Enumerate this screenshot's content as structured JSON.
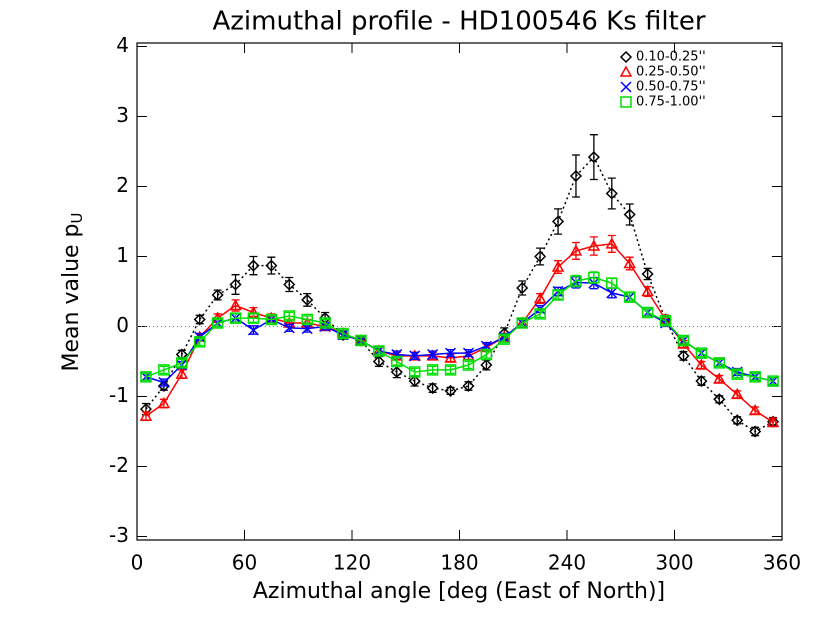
{
  "chart_data": {
    "type": "line",
    "title": "Azimuthal profile - HD100546 Ks filter",
    "xlabel": "Azimuthal angle [deg (East of North)]",
    "ylabel": {
      "text": "Mean value p",
      "subscript": "U"
    },
    "x": [
      5,
      15,
      25,
      35,
      45,
      55,
      65,
      75,
      85,
      95,
      105,
      115,
      125,
      135,
      145,
      155,
      165,
      175,
      185,
      195,
      205,
      215,
      225,
      235,
      245,
      255,
      265,
      275,
      285,
      295,
      305,
      315,
      325,
      335,
      345,
      355
    ],
    "xlim": [
      0,
      360
    ],
    "xticks": [
      0,
      60,
      120,
      180,
      240,
      300,
      360
    ],
    "ylim": [
      -3.05,
      4.05
    ],
    "yticks": [
      -3,
      -2,
      -1,
      0,
      1,
      2,
      3,
      4
    ],
    "reference_line": 0,
    "legend": "upper right",
    "series": [
      {
        "name": "0.10-0.25''",
        "color": "#000000",
        "marker": "diamond",
        "linestyle": "dotted",
        "values": [
          -1.18,
          -0.85,
          -0.4,
          0.1,
          0.45,
          0.6,
          0.87,
          0.87,
          0.6,
          0.38,
          0.12,
          -0.12,
          -0.2,
          -0.5,
          -0.65,
          -0.78,
          -0.88,
          -0.92,
          -0.85,
          -0.55,
          -0.1,
          0.55,
          1.0,
          1.5,
          2.15,
          2.42,
          1.9,
          1.6,
          0.75,
          0.1,
          -0.42,
          -0.78,
          -1.04,
          -1.34,
          -1.5,
          -1.36
        ],
        "errors": [
          0.08,
          0.06,
          0.06,
          0.06,
          0.07,
          0.14,
          0.13,
          0.12,
          0.1,
          0.09,
          0.08,
          0.06,
          0.06,
          0.07,
          0.08,
          0.07,
          0.06,
          0.05,
          0.06,
          0.07,
          0.08,
          0.1,
          0.12,
          0.18,
          0.3,
          0.32,
          0.22,
          0.15,
          0.08,
          0.06,
          0.06,
          0.06,
          0.05,
          0.05,
          0.06,
          0.06
        ]
      },
      {
        "name": "0.25-0.50''",
        "color": "#ff0000",
        "marker": "triangle",
        "linestyle": "solid",
        "values": [
          -1.28,
          -1.1,
          -0.68,
          -0.15,
          0.12,
          0.3,
          0.2,
          0.12,
          0.05,
          0.05,
          0.0,
          -0.1,
          -0.2,
          -0.35,
          -0.42,
          -0.42,
          -0.42,
          -0.45,
          -0.42,
          -0.3,
          -0.15,
          0.05,
          0.4,
          0.85,
          1.08,
          1.15,
          1.18,
          0.9,
          0.5,
          0.1,
          -0.25,
          -0.55,
          -0.75,
          -0.97,
          -1.2,
          -1.37
        ],
        "errors": [
          0.06,
          0.06,
          0.06,
          0.05,
          0.06,
          0.08,
          0.07,
          0.06,
          0.05,
          0.05,
          0.05,
          0.05,
          0.05,
          0.05,
          0.05,
          0.05,
          0.05,
          0.05,
          0.05,
          0.05,
          0.05,
          0.06,
          0.07,
          0.09,
          0.12,
          0.13,
          0.12,
          0.09,
          0.07,
          0.05,
          0.05,
          0.05,
          0.05,
          0.05,
          0.05,
          0.06
        ]
      },
      {
        "name": "0.50-0.75''",
        "color": "#0000ff",
        "marker": "x",
        "linestyle": "solid",
        "values": [
          -0.72,
          -0.8,
          -0.55,
          -0.15,
          0.05,
          0.12,
          -0.05,
          0.1,
          -0.02,
          -0.03,
          0.0,
          -0.12,
          -0.2,
          -0.35,
          -0.4,
          -0.42,
          -0.4,
          -0.38,
          -0.38,
          -0.28,
          -0.15,
          0.05,
          0.25,
          0.5,
          0.63,
          0.62,
          0.48,
          0.42,
          0.2,
          0.05,
          -0.2,
          -0.38,
          -0.52,
          -0.65,
          -0.72,
          -0.78
        ],
        "errors": [
          0.05,
          0.05,
          0.05,
          0.05,
          0.05,
          0.06,
          0.06,
          0.05,
          0.05,
          0.05,
          0.05,
          0.05,
          0.05,
          0.05,
          0.05,
          0.05,
          0.05,
          0.05,
          0.05,
          0.05,
          0.05,
          0.05,
          0.05,
          0.06,
          0.08,
          0.08,
          0.07,
          0.06,
          0.05,
          0.05,
          0.05,
          0.05,
          0.05,
          0.05,
          0.05,
          0.05
        ]
      },
      {
        "name": "0.75-1.00''",
        "color": "#00e000",
        "marker": "square",
        "linestyle": "solid",
        "values": [
          -0.72,
          -0.62,
          -0.52,
          -0.22,
          0.05,
          0.12,
          0.12,
          0.1,
          0.15,
          0.1,
          0.05,
          -0.1,
          -0.2,
          -0.35,
          -0.5,
          -0.65,
          -0.62,
          -0.62,
          -0.55,
          -0.4,
          -0.18,
          0.05,
          0.18,
          0.45,
          0.65,
          0.7,
          0.62,
          0.42,
          0.2,
          0.08,
          -0.2,
          -0.38,
          -0.52,
          -0.68,
          -0.72,
          -0.78
        ],
        "errors": [
          0.05,
          0.05,
          0.05,
          0.05,
          0.05,
          0.06,
          0.06,
          0.05,
          0.05,
          0.05,
          0.05,
          0.05,
          0.05,
          0.05,
          0.05,
          0.05,
          0.05,
          0.05,
          0.05,
          0.05,
          0.05,
          0.05,
          0.05,
          0.06,
          0.08,
          0.08,
          0.07,
          0.06,
          0.05,
          0.05,
          0.05,
          0.05,
          0.05,
          0.05,
          0.05,
          0.05
        ]
      }
    ]
  }
}
